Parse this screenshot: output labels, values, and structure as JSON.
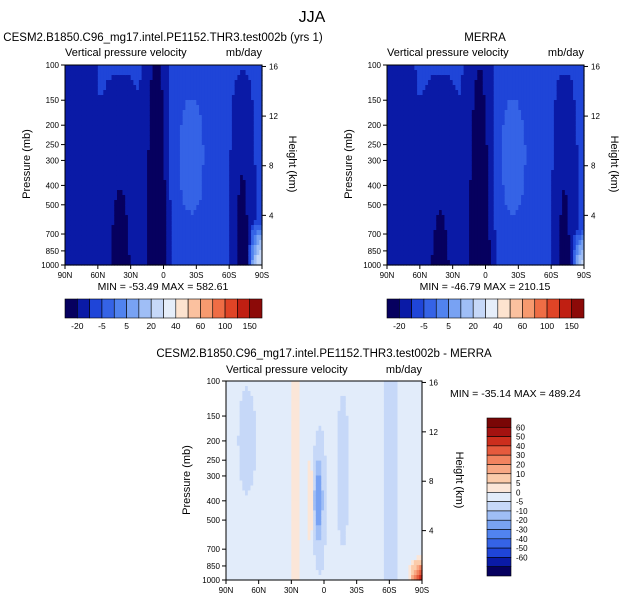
{
  "title": "JJA",
  "colors": {
    "top_palette": [
      "#06005f",
      "#0a1aa6",
      "#1f45d8",
      "#3563e6",
      "#5183ef",
      "#78a2f3",
      "#9fbef6",
      "#c6d8f8",
      "#e6eefa",
      "#fde3cf",
      "#fbc19f",
      "#f79a6f",
      "#ef6d45",
      "#e04426",
      "#c01f12",
      "#8c0a08"
    ],
    "diff_palette": [
      "#06005f",
      "#0a1aa6",
      "#1f45d8",
      "#3563e6",
      "#5183ef",
      "#78a2f3",
      "#9fbef6",
      "#c6d8f8",
      "#e2ecfa",
      "#fbe6d8",
      "#fbcbaa",
      "#f8a884",
      "#f2835f",
      "#e65a3d",
      "#cc2e1d",
      "#a41210",
      "#7a0606"
    ]
  },
  "panels": [
    {
      "title": "CESM2.B1850.C96_mg17.intel.PE1152.THR3.test002b (yrs 1)",
      "left_label": "Vertical pressure velocity",
      "right_label": "mb/day",
      "ylabel": "Pressure (mb)",
      "y2label": "Height (km)",
      "minmax": "MIN = -53.49   MAX = 582.61"
    },
    {
      "title": "MERRA",
      "left_label": "Vertical pressure velocity",
      "right_label": "mb/day",
      "ylabel": "Pressure (mb)",
      "y2label": "Height (km)",
      "minmax": "MIN = -46.79   MAX = 210.15"
    },
    {
      "title": "CESM2.B1850.C96_mg17.intel.PE1152.THR3.test002b - MERRA",
      "left_label": "Vertical pressure velocity",
      "right_label": "mb/day",
      "ylabel": "Pressure (mb)",
      "y2label": "Height (km)",
      "minmax": "MIN = -35.14   MAX = 489.24"
    }
  ],
  "chart_data": [
    {
      "type": "heatmap",
      "title": "CESM2.B1850.C96_mg17.intel.PE1152.THR3.test002b (yrs 1)",
      "variable": "Vertical pressure velocity",
      "units": "mb/day",
      "x_ticks": [
        "90N",
        "60N",
        "30N",
        "0",
        "30S",
        "60S",
        "90S"
      ],
      "y_ticks": [
        100,
        150,
        200,
        250,
        300,
        400,
        500,
        700,
        850,
        1000
      ],
      "y_scale": "log",
      "ylim": [
        1000,
        100
      ],
      "y2_ticks": [
        4,
        8,
        12,
        16
      ],
      "min": -53.49,
      "max": 582.61,
      "contour_levels": [
        -20,
        -5,
        5,
        20,
        40,
        60,
        100,
        150
      ]
    },
    {
      "type": "heatmap",
      "title": "MERRA",
      "variable": "Vertical pressure velocity",
      "units": "mb/day",
      "x_ticks": [
        "90N",
        "60N",
        "30N",
        "0",
        "30S",
        "60S",
        "90S"
      ],
      "y_ticks": [
        100,
        150,
        200,
        250,
        300,
        400,
        500,
        700,
        850,
        1000
      ],
      "y_scale": "log",
      "ylim": [
        1000,
        100
      ],
      "y2_ticks": [
        4,
        8,
        12,
        16
      ],
      "min": -46.79,
      "max": 210.15,
      "contour_levels": [
        -20,
        -5,
        5,
        20,
        40,
        60,
        100,
        150
      ]
    },
    {
      "type": "heatmap",
      "title": "CESM2.B1850.C96_mg17.intel.PE1152.THR3.test002b - MERRA",
      "variable": "Vertical pressure velocity",
      "units": "mb/day",
      "x_ticks": [
        "90N",
        "60N",
        "30N",
        "0",
        "30S",
        "60S",
        "90S"
      ],
      "y_ticks": [
        100,
        150,
        200,
        250,
        300,
        400,
        500,
        700,
        850,
        1000
      ],
      "y_scale": "log",
      "ylim": [
        1000,
        100
      ],
      "y2_ticks": [
        4,
        8,
        12,
        16
      ],
      "min": -35.14,
      "max": 489.24,
      "contour_levels": [
        60,
        50,
        40,
        30,
        20,
        10,
        5,
        0,
        -5,
        -10,
        -20,
        -30,
        -40,
        -50,
        -60
      ]
    }
  ],
  "top_colorbar_labels": [
    "-20",
    "-5",
    "5",
    "20",
    "40",
    "60",
    "100",
    "150"
  ],
  "diff_colorbar_labels": [
    "60",
    "50",
    "40",
    "30",
    "20",
    "10",
    "5",
    "0",
    "-5",
    "-10",
    "-20",
    "-30",
    "-40",
    "-50",
    "-60"
  ]
}
